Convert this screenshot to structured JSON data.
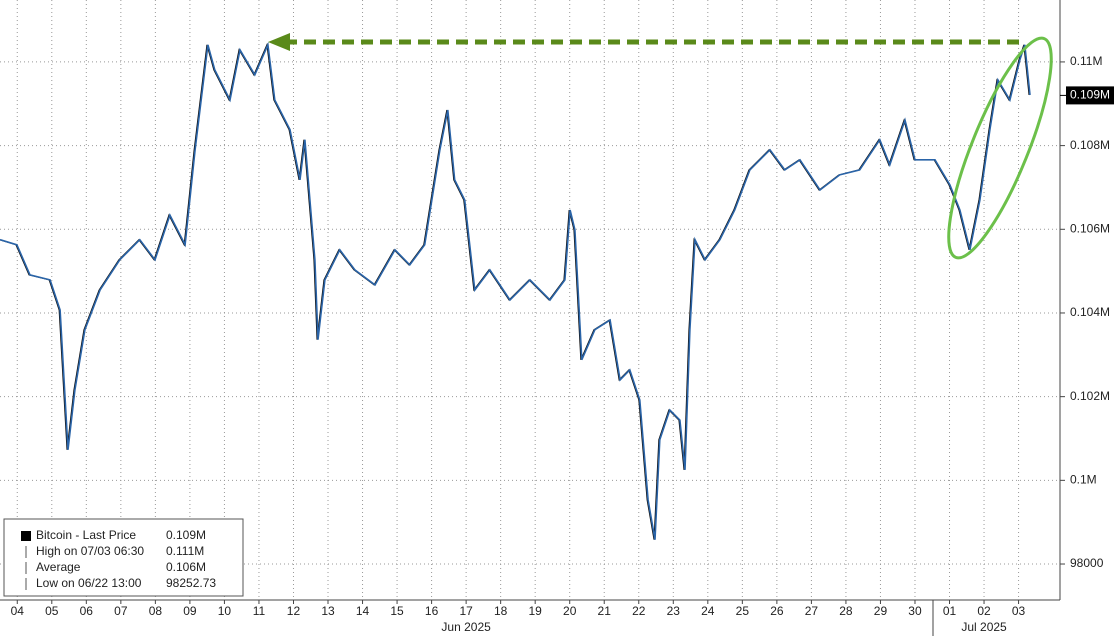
{
  "chart_data": {
    "type": "line",
    "x": [
      -0.5,
      -0.01,
      0.37,
      0.95,
      1.24,
      1.47,
      1.67,
      1.96,
      2.4,
      2.97,
      3.55,
      3.99,
      4.42,
      4.86,
      5.15,
      5.52,
      5.72,
      6.16,
      6.45,
      6.88,
      7.26,
      7.46,
      7.9,
      8.19,
      8.33,
      8.62,
      8.71,
      8.91,
      9.34,
      9.78,
      10.36,
      10.94,
      11.37,
      11.8,
      12.24,
      12.47,
      12.67,
      12.96,
      13.25,
      13.69,
      14.27,
      14.85,
      15.43,
      15.86,
      16.01,
      16.15,
      16.35,
      16.73,
      17.17,
      17.46,
      17.74,
      18.03,
      18.27,
      18.47,
      18.61,
      18.9,
      19.19,
      19.34,
      19.48,
      19.63,
      19.92,
      20.35,
      20.78,
      21.22,
      21.8,
      22.23,
      22.67,
      23.25,
      23.82,
      24.4,
      24.98,
      25.27,
      25.71,
      26.0,
      26.58,
      27.01,
      27.3,
      27.59,
      27.88,
      28.17,
      28.4,
      28.75,
      29.04,
      29.18,
      29.33
    ],
    "series": [
      {
        "name": "Bitcoin - Last Price",
        "color": "#2a64a8",
        "values": [
          105750,
          105630,
          104910,
          104790,
          104070,
          100730,
          102160,
          103600,
          104550,
          105270,
          105750,
          105270,
          106340,
          105630,
          107900,
          110410,
          109810,
          109090,
          110290,
          109690,
          110410,
          109090,
          108380,
          107180,
          108140,
          105270,
          103360,
          104790,
          105510,
          105030,
          104670,
          105510,
          105150,
          105630,
          107900,
          108850,
          107180,
          106700,
          104550,
          105030,
          104310,
          104790,
          104310,
          104790,
          106460,
          105990,
          102880,
          103600,
          103830,
          102400,
          102640,
          101920,
          99530,
          98580,
          100970,
          101680,
          101440,
          100250,
          103600,
          105750,
          105270,
          105750,
          106460,
          107420,
          107900,
          107420,
          107660,
          106940,
          107300,
          107420,
          108140,
          107540,
          108610,
          107660,
          107660,
          107060,
          106460,
          105510,
          106700,
          108380,
          109570,
          109090,
          110050,
          110410,
          109210
        ]
      }
    ],
    "xlim": [
      -0.5,
      30.2
    ],
    "ylim": [
      97140,
      111480
    ],
    "xticks": [
      {
        "value": 0,
        "label": "04"
      },
      {
        "value": 1,
        "label": "05"
      },
      {
        "value": 2,
        "label": "06"
      },
      {
        "value": 3,
        "label": "07"
      },
      {
        "value": 4,
        "label": "08"
      },
      {
        "value": 5,
        "label": "09"
      },
      {
        "value": 6,
        "label": "10"
      },
      {
        "value": 7,
        "label": "11"
      },
      {
        "value": 8,
        "label": "12"
      },
      {
        "value": 9,
        "label": "13"
      },
      {
        "value": 10,
        "label": "14"
      },
      {
        "value": 11,
        "label": "15"
      },
      {
        "value": 12,
        "label": "16"
      },
      {
        "value": 13,
        "label": "17"
      },
      {
        "value": 14,
        "label": "18"
      },
      {
        "value": 15,
        "label": "19"
      },
      {
        "value": 16,
        "label": "20"
      },
      {
        "value": 17,
        "label": "21"
      },
      {
        "value": 18,
        "label": "22"
      },
      {
        "value": 19,
        "label": "23"
      },
      {
        "value": 20,
        "label": "24"
      },
      {
        "value": 21,
        "label": "25"
      },
      {
        "value": 22,
        "label": "26"
      },
      {
        "value": 23,
        "label": "27"
      },
      {
        "value": 24,
        "label": "28"
      },
      {
        "value": 25,
        "label": "29"
      },
      {
        "value": 26,
        "label": "30"
      },
      {
        "value": 27,
        "label": "01"
      },
      {
        "value": 28,
        "label": "02"
      },
      {
        "value": 29,
        "label": "03"
      }
    ],
    "x_group_labels": [
      {
        "value": 13,
        "label": "Jun 2025"
      },
      {
        "value": 28,
        "label": "Jul 2025"
      }
    ],
    "yticks": [
      {
        "value": 110000,
        "label": "0.11M"
      },
      {
        "value": 108000,
        "label": "0.108M"
      },
      {
        "value": 106000,
        "label": "0.106M"
      },
      {
        "value": 104000,
        "label": "0.104M"
      },
      {
        "value": 102000,
        "label": "0.102M"
      },
      {
        "value": 100000,
        "label": "0.1M"
      },
      98000
    ],
    "last_price_label": {
      "value": 109200,
      "label": "0.109M"
    },
    "grid": true,
    "legend": [
      {
        "label": "Bitcoin - Last Price",
        "value": "0.109M"
      },
      {
        "label": "High on 07/03 06:30",
        "value": "0.111M"
      },
      {
        "label": "Average",
        "value": "0.106M"
      },
      {
        "label": "Low on 06/22 13:00",
        "value": 98252.73
      }
    ]
  }
}
